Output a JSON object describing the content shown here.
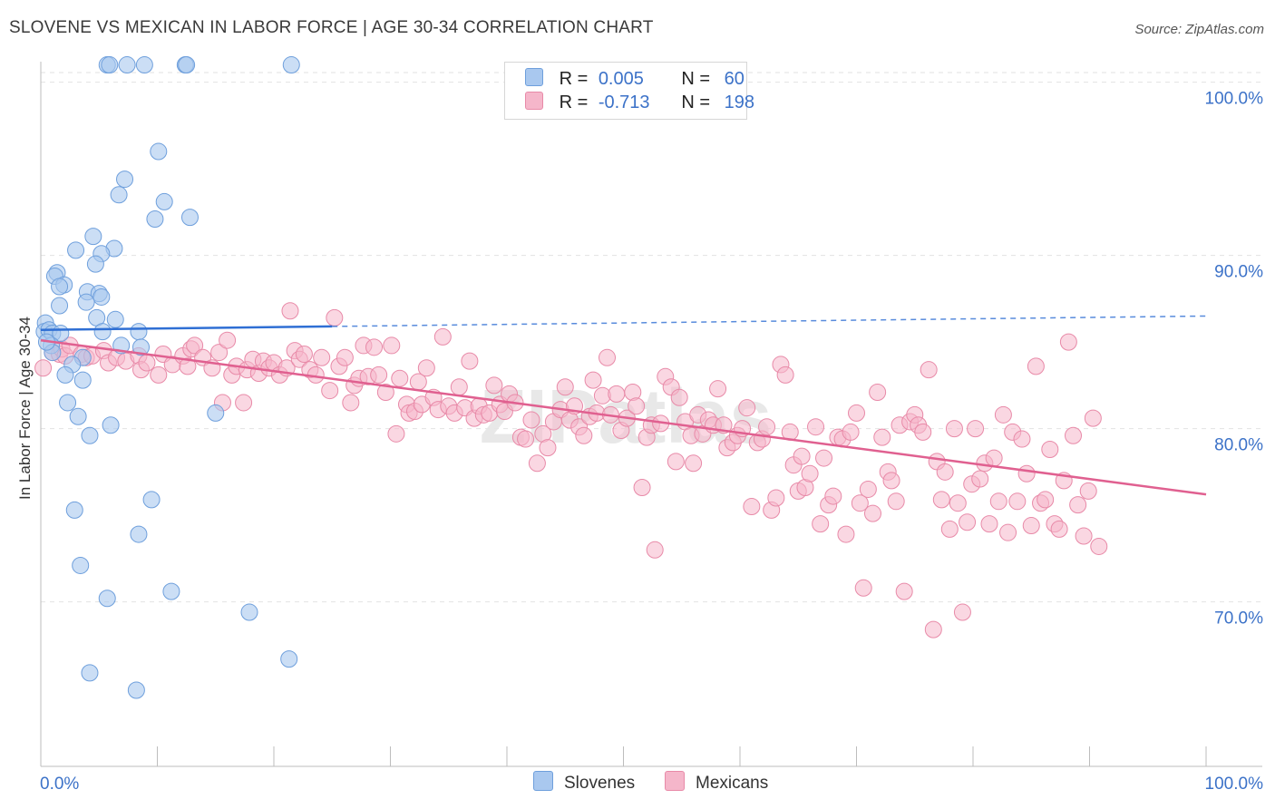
{
  "title": "SLOVENE VS MEXICAN IN LABOR FORCE | AGE 30-34 CORRELATION CHART",
  "source": "Source: ZipAtlas.com",
  "watermark": "ZIPatlas",
  "colors": {
    "slovenes_fill": "#a9c8ef",
    "slovenes_stroke": "#6e9fdc",
    "slovenes_line": "#2f6fd4",
    "mexicans_fill": "#f5b6ca",
    "mexicans_stroke": "#e88aa8",
    "mexicans_line": "#e06090",
    "value_text": "#3c72c8",
    "grid": "#e2e2e2"
  },
  "legend_top": {
    "slovenes": {
      "r_label": "R =",
      "r_value": "0.005",
      "n_label": "N =",
      "n_value": "60"
    },
    "mexicans": {
      "r_label": "R =",
      "r_value": "-0.713",
      "n_label": "N =",
      "n_value": "198"
    }
  },
  "legend_bottom": {
    "slovenes": "Slovenes",
    "mexicans": "Mexicans"
  },
  "chart_data": {
    "type": "scatter",
    "title": "SLOVENE VS MEXICAN IN LABOR FORCE | AGE 30-34 CORRELATION CHART",
    "xlabel": "",
    "ylabel": "In Labor Force | Age 30-34",
    "xlim": [
      0,
      100
    ],
    "ylim": [
      60.5,
      101.5
    ],
    "x_tick_labels": [
      "0.0%",
      "100.0%"
    ],
    "y_tick_values": [
      100,
      90,
      80,
      70
    ],
    "y_tick_labels": [
      "100.0%",
      "90.0%",
      "80.0%",
      "70.0%"
    ],
    "grid": true,
    "legend_placement": "top-center",
    "series": [
      {
        "name": "Slovenes",
        "r": 0.005,
        "n": 60,
        "trend": {
          "x0": 0,
          "y0": 85.7,
          "x1": 100,
          "y1": 86.5,
          "solid_until_x": 25
        },
        "points": [
          [
            5.7,
            101
          ],
          [
            5.9,
            101
          ],
          [
            7.4,
            101
          ],
          [
            8.9,
            101
          ],
          [
            12.4,
            101
          ],
          [
            12.5,
            101
          ],
          [
            21.5,
            101
          ],
          [
            10.1,
            96
          ],
          [
            7.2,
            94.4
          ],
          [
            6.7,
            93.5
          ],
          [
            10.6,
            93.1
          ],
          [
            9.8,
            92.1
          ],
          [
            12.8,
            92.2
          ],
          [
            4.5,
            91.1
          ],
          [
            3,
            90.3
          ],
          [
            6.3,
            90.4
          ],
          [
            5.2,
            90.1
          ],
          [
            4.7,
            89.5
          ],
          [
            1.4,
            89
          ],
          [
            1.2,
            88.8
          ],
          [
            2,
            88.3
          ],
          [
            1.6,
            88.2
          ],
          [
            4,
            87.9
          ],
          [
            5,
            87.8
          ],
          [
            5.2,
            87.6
          ],
          [
            3.9,
            87.3
          ],
          [
            1.6,
            87.1
          ],
          [
            4.8,
            86.4
          ],
          [
            6.4,
            86.3
          ],
          [
            0.4,
            86.1
          ],
          [
            0.3,
            85.6
          ],
          [
            0.7,
            85.7
          ],
          [
            1,
            85.5
          ],
          [
            1.7,
            85.5
          ],
          [
            5.3,
            85.6
          ],
          [
            8.4,
            85.6
          ],
          [
            0.9,
            84.8
          ],
          [
            6.9,
            84.8
          ],
          [
            8.6,
            84.7
          ],
          [
            1,
            84.4
          ],
          [
            3.6,
            84.1
          ],
          [
            2.7,
            83.7
          ],
          [
            2.1,
            83.1
          ],
          [
            3.6,
            82.8
          ],
          [
            2.3,
            81.5
          ],
          [
            3.2,
            80.7
          ],
          [
            6,
            80.2
          ],
          [
            15,
            80.9
          ],
          [
            4.2,
            79.6
          ],
          [
            9.5,
            75.9
          ],
          [
            2.9,
            75.3
          ],
          [
            8.4,
            73.9
          ],
          [
            3.4,
            72.1
          ],
          [
            5.7,
            70.2
          ],
          [
            11.2,
            70.6
          ],
          [
            17.9,
            69.4
          ],
          [
            21.3,
            66.7
          ],
          [
            4.2,
            65.9
          ],
          [
            8.2,
            64.9
          ],
          [
            0.5,
            85.0
          ]
        ]
      },
      {
        "name": "Mexicans",
        "r": -0.713,
        "n": 198,
        "trend": {
          "x0": 0,
          "y0": 85.1,
          "x1": 100,
          "y1": 76.2
        },
        "points": [
          [
            0.2,
            83.5
          ],
          [
            1,
            84.4
          ],
          [
            1.6,
            84.3
          ],
          [
            1.8,
            84.6
          ],
          [
            2.1,
            84.2
          ],
          [
            2.5,
            84.8
          ],
          [
            3.5,
            84.3
          ],
          [
            3.9,
            84.1
          ],
          [
            4.4,
            84.2
          ],
          [
            5.4,
            84.5
          ],
          [
            5.8,
            83.8
          ],
          [
            6.5,
            84.1
          ],
          [
            7.3,
            83.9
          ],
          [
            8.4,
            84.2
          ],
          [
            8.6,
            83.4
          ],
          [
            9.1,
            83.8
          ],
          [
            10.1,
            83.1
          ],
          [
            10.5,
            84.3
          ],
          [
            11.3,
            83.7
          ],
          [
            12.2,
            84.2
          ],
          [
            12.6,
            83.6
          ],
          [
            12.9,
            84.6
          ],
          [
            13.2,
            84.8
          ],
          [
            13.9,
            84.1
          ],
          [
            14.7,
            83.5
          ],
          [
            15.3,
            84.4
          ],
          [
            15.6,
            81.5
          ],
          [
            16,
            85.1
          ],
          [
            16.4,
            83.1
          ],
          [
            16.8,
            83.6
          ],
          [
            17.4,
            81.5
          ],
          [
            17.7,
            83.4
          ],
          [
            18.2,
            84.0
          ],
          [
            18.7,
            83.2
          ],
          [
            19.1,
            83.9
          ],
          [
            19.6,
            83.5
          ],
          [
            20,
            83.8
          ],
          [
            20.5,
            83.1
          ],
          [
            21.1,
            83.5
          ],
          [
            21.4,
            86.8
          ],
          [
            21.8,
            84.5
          ],
          [
            22.2,
            84.0
          ],
          [
            22.6,
            84.3
          ],
          [
            23.1,
            83.4
          ],
          [
            23.6,
            83.1
          ],
          [
            24.1,
            84.1
          ],
          [
            24.8,
            82.2
          ],
          [
            25.2,
            86.4
          ],
          [
            25.6,
            83.6
          ],
          [
            26.1,
            84.1
          ],
          [
            26.6,
            81.5
          ],
          [
            26.9,
            82.5
          ],
          [
            27.3,
            82.9
          ],
          [
            27.7,
            84.8
          ],
          [
            28.1,
            83.0
          ],
          [
            28.6,
            84.7
          ],
          [
            29,
            83.1
          ],
          [
            29.6,
            82.1
          ],
          [
            30.1,
            84.8
          ],
          [
            30.5,
            79.7
          ],
          [
            30.8,
            82.9
          ],
          [
            31.4,
            81.4
          ],
          [
            31.6,
            80.9
          ],
          [
            32.1,
            81.0
          ],
          [
            32.4,
            82.7
          ],
          [
            32.7,
            81.4
          ],
          [
            33.1,
            83.5
          ],
          [
            33.7,
            81.8
          ],
          [
            34.1,
            81.1
          ],
          [
            34.5,
            85.3
          ],
          [
            35,
            81.3
          ],
          [
            35.5,
            80.9
          ],
          [
            35.9,
            82.4
          ],
          [
            36.4,
            81.2
          ],
          [
            36.8,
            83.9
          ],
          [
            37.2,
            80.6
          ],
          [
            37.6,
            81.3
          ],
          [
            38,
            80.8
          ],
          [
            38.5,
            80.9
          ],
          [
            38.9,
            82.5
          ],
          [
            39.4,
            81.4
          ],
          [
            39.8,
            81.0
          ],
          [
            40.2,
            82.0
          ],
          [
            40.7,
            81.5
          ],
          [
            41.2,
            79.5
          ],
          [
            41.6,
            79.4
          ],
          [
            42.1,
            80.5
          ],
          [
            42.6,
            78.0
          ],
          [
            43.1,
            79.7
          ],
          [
            43.5,
            78.9
          ],
          [
            44,
            80.4
          ],
          [
            44.6,
            81.1
          ],
          [
            45,
            82.4
          ],
          [
            45.4,
            80.5
          ],
          [
            45.8,
            81.3
          ],
          [
            46.2,
            80.1
          ],
          [
            46.6,
            79.6
          ],
          [
            47.1,
            80.7
          ],
          [
            47.4,
            82.8
          ],
          [
            47.7,
            80.9
          ],
          [
            48.2,
            81.9
          ],
          [
            48.6,
            84.1
          ],
          [
            48.9,
            80.8
          ],
          [
            49.4,
            82.0
          ],
          [
            49.8,
            79.9
          ],
          [
            50.3,
            80.6
          ],
          [
            50.8,
            82.1
          ],
          [
            51.1,
            81.3
          ],
          [
            51.6,
            76.6
          ],
          [
            52,
            79.5
          ],
          [
            52.4,
            80.2
          ],
          [
            52.7,
            73
          ],
          [
            53.2,
            80.3
          ],
          [
            53.6,
            83.0
          ],
          [
            54.1,
            82.4
          ],
          [
            54.5,
            78.1
          ],
          [
            54.8,
            81.8
          ],
          [
            55.3,
            80.4
          ],
          [
            55.8,
            79.6
          ],
          [
            56,
            78.0
          ],
          [
            56.4,
            80.8
          ],
          [
            56.8,
            79.7
          ],
          [
            57.3,
            80.5
          ],
          [
            57.7,
            80.2
          ],
          [
            58.1,
            82.3
          ],
          [
            58.6,
            80.2
          ],
          [
            58.9,
            78.9
          ],
          [
            59.4,
            79.2
          ],
          [
            59.8,
            79.6
          ],
          [
            60.2,
            80.0
          ],
          [
            60.6,
            81.2
          ],
          [
            61,
            75.5
          ],
          [
            61.5,
            79.2
          ],
          [
            61.9,
            79.4
          ],
          [
            62.3,
            80.1
          ],
          [
            62.7,
            75.3
          ],
          [
            63.1,
            76.0
          ],
          [
            63.5,
            83.7
          ],
          [
            63.9,
            83.1
          ],
          [
            64.3,
            79.8
          ],
          [
            64.6,
            77.9
          ],
          [
            65,
            76.4
          ],
          [
            65.3,
            78.4
          ],
          [
            65.6,
            76.6
          ],
          [
            66,
            77.4
          ],
          [
            66.5,
            80.1
          ],
          [
            66.9,
            74.5
          ],
          [
            67.2,
            78.3
          ],
          [
            67.6,
            75.6
          ],
          [
            68,
            76.1
          ],
          [
            68.4,
            79.5
          ],
          [
            68.8,
            79.4
          ],
          [
            69.1,
            73.9
          ],
          [
            69.5,
            79.8
          ],
          [
            70,
            80.9
          ],
          [
            70.3,
            75.7
          ],
          [
            70.6,
            70.8
          ],
          [
            71,
            76.5
          ],
          [
            71.4,
            75.1
          ],
          [
            71.8,
            82.1
          ],
          [
            72.2,
            79.5
          ],
          [
            72.7,
            77.5
          ],
          [
            73,
            77.0
          ],
          [
            73.4,
            75.8
          ],
          [
            73.7,
            80.2
          ],
          [
            74.1,
            70.6
          ],
          [
            74.6,
            80.4
          ],
          [
            75,
            80.8
          ],
          [
            75.3,
            80.2
          ],
          [
            75.7,
            79.8
          ],
          [
            76.2,
            83.4
          ],
          [
            76.6,
            68.4
          ],
          [
            76.9,
            78.1
          ],
          [
            77.3,
            75.9
          ],
          [
            77.6,
            77.5
          ],
          [
            78,
            74.2
          ],
          [
            78.4,
            80.0
          ],
          [
            78.7,
            75.7
          ],
          [
            79.1,
            69.4
          ],
          [
            79.5,
            74.6
          ],
          [
            79.9,
            76.8
          ],
          [
            80.2,
            80.0
          ],
          [
            80.6,
            77.1
          ],
          [
            81,
            78.0
          ],
          [
            81.4,
            74.5
          ],
          [
            81.8,
            78.3
          ],
          [
            82.2,
            75.8
          ],
          [
            82.6,
            80.8
          ],
          [
            83,
            74.0
          ],
          [
            83.4,
            79.8
          ],
          [
            83.8,
            75.8
          ],
          [
            84.2,
            79.4
          ],
          [
            84.6,
            77.4
          ],
          [
            85,
            74.4
          ],
          [
            85.4,
            83.6
          ],
          [
            85.8,
            75.7
          ],
          [
            86.2,
            75.9
          ],
          [
            86.6,
            78.8
          ],
          [
            87,
            74.5
          ],
          [
            87.4,
            74.2
          ],
          [
            87.8,
            77.0
          ],
          [
            88.2,
            85.0
          ],
          [
            88.6,
            79.6
          ],
          [
            89,
            75.6
          ],
          [
            89.5,
            73.8
          ],
          [
            89.9,
            76.4
          ],
          [
            90.3,
            80.6
          ],
          [
            90.8,
            73.2
          ]
        ]
      }
    ]
  }
}
